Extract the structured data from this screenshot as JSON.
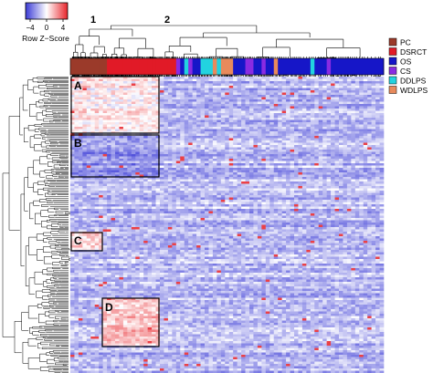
{
  "chart_data": {
    "type": "heatmap",
    "title": "",
    "xlabel": "",
    "ylabel": "",
    "color_key": {
      "title": "Row Z−Score",
      "ticks": [
        -4,
        0,
        4
      ],
      "tick_labels": [
        "−4",
        "0",
        "4"
      ],
      "low_color": "#3b3bd6",
      "mid_color": "#ffffff",
      "high_color": "#e8252b"
    },
    "column_clusters": [
      {
        "label": "1"
      },
      {
        "label": "2"
      }
    ],
    "legend": {
      "placement": "right",
      "entries": [
        {
          "label": "PC",
          "color": "#9b3a2a"
        },
        {
          "label": "DSRCT",
          "color": "#e11a27"
        },
        {
          "label": "OS",
          "color": "#1616c8"
        },
        {
          "label": "CS",
          "color": "#8a2be2"
        },
        {
          "label": "DDLPS",
          "color": "#22d3e0"
        },
        {
          "label": "WDLPS",
          "color": "#e88a5c"
        }
      ]
    },
    "column_annotation_sequence": [
      {
        "group": "PC",
        "count": 9
      },
      {
        "group": "DSRCT",
        "count": 17
      },
      {
        "group": "CS",
        "count": 1
      },
      {
        "group": "OS",
        "count": 1
      },
      {
        "group": "DDLPS",
        "count": 1
      },
      {
        "group": "CS",
        "count": 1
      },
      {
        "group": "OS",
        "count": 2
      },
      {
        "group": "DDLPS",
        "count": 3
      },
      {
        "group": "WDLPS",
        "count": 1
      },
      {
        "group": "DDLPS",
        "count": 1
      },
      {
        "group": "WDLPS",
        "count": 3
      },
      {
        "group": "OS",
        "count": 3
      },
      {
        "group": "CS",
        "count": 2
      },
      {
        "group": "OS",
        "count": 2
      },
      {
        "group": "CS",
        "count": 1
      },
      {
        "group": "OS",
        "count": 2
      },
      {
        "group": "WDLPS",
        "count": 1
      },
      {
        "group": "OS",
        "count": 8
      },
      {
        "group": "DDLPS",
        "count": 1
      },
      {
        "group": "OS",
        "count": 3
      },
      {
        "group": "CS",
        "count": 1
      },
      {
        "group": "OS",
        "count": 13
      }
    ],
    "highlighted_blocks": [
      {
        "label": "A",
        "description_rows": "upper",
        "columns": "cluster 1",
        "tendency": "high"
      },
      {
        "label": "B",
        "description_rows": "upper-middle",
        "columns": "cluster 1",
        "tendency": "low"
      },
      {
        "label": "C",
        "description_rows": "middle",
        "columns": "cluster 1 (PC)",
        "tendency": "high"
      },
      {
        "label": "D",
        "description_rows": "lower",
        "columns": "cluster 1 (DSRCT)",
        "tendency": "high"
      }
    ]
  },
  "colors": {
    "background": "#ffffff",
    "dendrogram": "#000000",
    "box_outline": "#000000"
  }
}
